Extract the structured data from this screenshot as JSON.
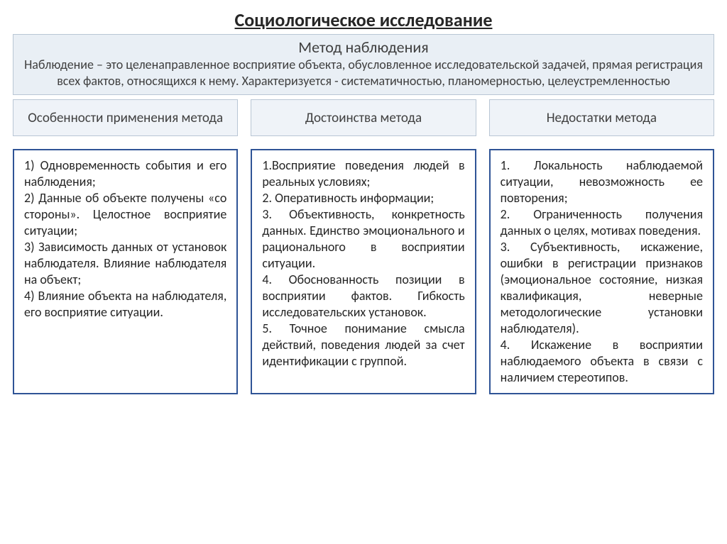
{
  "title": "Социологическое исследование",
  "definition": {
    "heading": "Метод наблюдения",
    "text": "Наблюдение – это целенаправленное восприятие объекта, обусловленное исследовательской задачей, прямая регистрация всех фактов, относящихся к нему. Характеризуется - систематичностью, планомерностью, целеустремленностью"
  },
  "columns": {
    "features": {
      "header": "Особенности применения метода",
      "body": "1) Одновременность события и его наблюдения;\n2) Данные об объекте получены «со стороны». Целостное восприятие ситуации;\n3) Зависимость данных от установок наблюдателя. Влияние наблюдателя на объект;\n4) Влияние объекта на наблюдателя, его восприятие ситуации."
    },
    "advantages": {
      "header": "Достоинства метода",
      "body": "1.Восприятие поведения людей в реальных условиях;\n2. Оперативность информации;\n3. Объективность, конкретность данных. Единство эмоционального и рационального в восприятии ситуации.\n4. Обоснованность позиции в восприятии фактов. Гибкость исследовательских установок.\n5. Точное понимание смысла действий, поведения людей за счет идентификации с группой."
    },
    "disadvantages": {
      "header": "Недостатки метода",
      "body": "1. Локальность наблюдаемой ситуации, невозможность ее повторения;\n2. Ограниченность получения данных о целях, мотивах поведения.\n3. Субъективность, искажение, ошибки в регистрации признаков (эмоциональное состояние, низкая квалификация, неверные методологические установки наблюдателя).\n4. Искажение в восприятии наблюдаемого объекта в связи с наличием стереотипов."
    }
  },
  "style": {
    "border_color": "#2f5496",
    "header_bg": "#eff3f8",
    "definition_bg": "#e9eff5",
    "font_family": "Calibri",
    "title_fontsize": 26,
    "body_fontsize": 18
  }
}
